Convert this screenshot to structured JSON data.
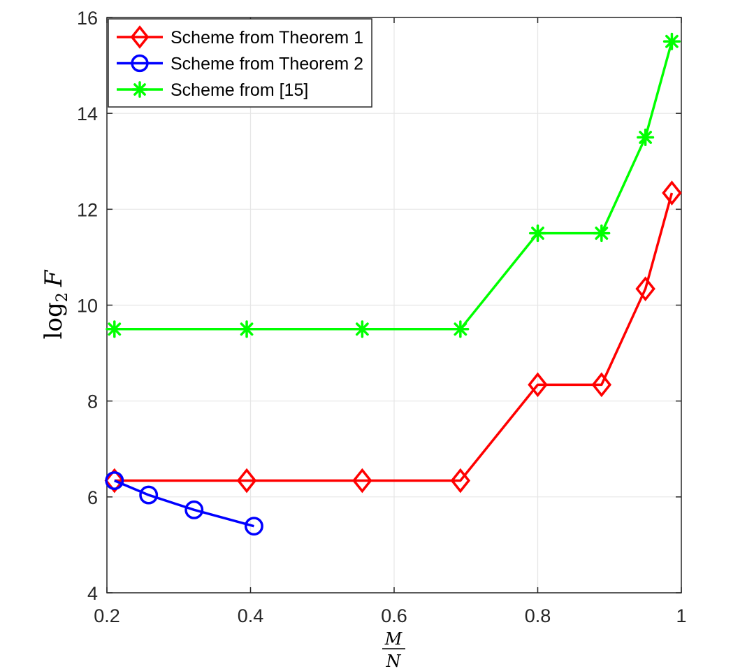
{
  "chart_data": {
    "type": "line",
    "xlabel": {
      "numerator": "M",
      "denominator": "N"
    },
    "ylabel": {
      "func": "log",
      "sub": "2",
      "var": "F"
    },
    "xlim": [
      0.2,
      1.0
    ],
    "ylim": [
      4,
      16
    ],
    "xticks": [
      0.2,
      0.4,
      0.6,
      0.8,
      1.0
    ],
    "xtick_labels": [
      "0.2",
      "0.4",
      "0.6",
      "0.8",
      "1"
    ],
    "yticks": [
      4,
      6,
      8,
      10,
      12,
      14,
      16
    ],
    "ytick_labels": [
      "4",
      "6",
      "8",
      "10",
      "12",
      "14",
      "16"
    ],
    "grid": true,
    "legend_position": "top-left",
    "series": [
      {
        "name": "Scheme from Theorem 1",
        "color": "#ff0000",
        "marker": "diamond",
        "x": [
          0.2105,
          0.3947,
          0.5556,
          0.6923,
          0.8,
          0.8889,
          0.95,
          0.9868
        ],
        "y": [
          6.34,
          6.34,
          6.34,
          6.34,
          8.34,
          8.34,
          10.34,
          12.34
        ]
      },
      {
        "name": "Scheme from Theorem 2",
        "color": "#0000ff",
        "marker": "circle",
        "x": [
          0.2105,
          0.2581,
          0.3214,
          0.4048
        ],
        "y": [
          6.34,
          6.04,
          5.73,
          5.39
        ]
      },
      {
        "name": "Scheme from [15]",
        "color": "#00ff00",
        "marker": "asterisk",
        "x": [
          0.2105,
          0.3947,
          0.5556,
          0.6923,
          0.8,
          0.8889,
          0.95,
          0.9868
        ],
        "y": [
          9.5,
          9.5,
          9.5,
          9.5,
          11.5,
          11.5,
          13.5,
          15.5
        ]
      }
    ]
  }
}
